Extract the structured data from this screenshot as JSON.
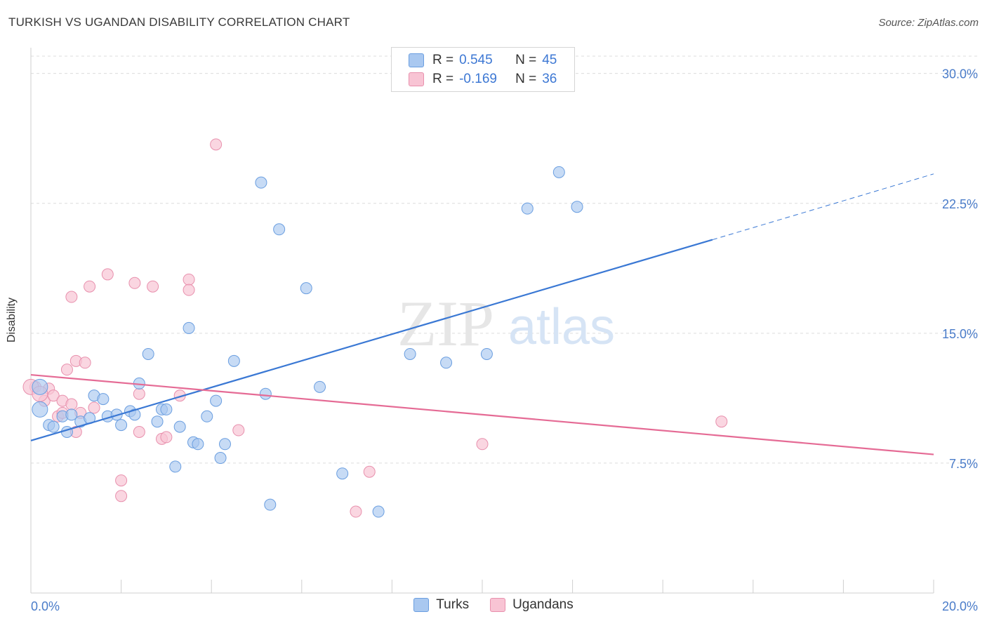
{
  "header": {
    "title": "TURKISH VS UGANDAN DISABILITY CORRELATION CHART",
    "source": "Source: ZipAtlas.com"
  },
  "watermark": {
    "zip": "ZIP",
    "atlas": "atlas"
  },
  "legend": {
    "rows": [
      {
        "r_label": "R =",
        "r_value": "0.545",
        "n_label": "N =",
        "n_value": "45",
        "color": "#a9c8f0",
        "border": "#6a9ee0"
      },
      {
        "r_label": "R =",
        "r_value": "-0.169",
        "n_label": "N =",
        "n_value": "36",
        "color": "#f8c4d4",
        "border": "#e890ad"
      }
    ]
  },
  "bottom_legend": [
    {
      "label": "Turks",
      "color": "#a9c8f0",
      "border": "#6a9ee0"
    },
    {
      "label": "Ugandans",
      "color": "#f8c4d4",
      "border": "#e890ad"
    }
  ],
  "chart_data": {
    "type": "scatter",
    "title": "TURKISH VS UGANDAN DISABILITY CORRELATION CHART",
    "xlabel": "",
    "ylabel": "Disability",
    "xlim": [
      0,
      20
    ],
    "ylim": [
      0,
      31
    ],
    "y_ticks": [
      {
        "value": 7.5,
        "label": "7.5%"
      },
      {
        "value": 15,
        "label": "15.0%"
      },
      {
        "value": 22.5,
        "label": "22.5%"
      },
      {
        "value": 30,
        "label": "30.0%"
      }
    ],
    "x_tick_labels": [
      {
        "value": 0,
        "label": "0.0%"
      },
      {
        "value": 20,
        "label": "20.0%"
      }
    ],
    "x_minor_ticks": [
      0,
      2,
      4,
      6,
      8,
      10,
      12,
      14,
      16,
      18,
      20
    ],
    "grid": "horizontal dashed",
    "colors": {
      "turks": "#3a78d4",
      "ugandans": "#e56b95",
      "turks_fill": "#a9c8f0",
      "ugandans_fill": "#f8c4d4"
    },
    "series": [
      {
        "name": "Turks",
        "points": [
          [
            0.2,
            11.9
          ],
          [
            0.2,
            10.6
          ],
          [
            0.4,
            9.7
          ],
          [
            0.5,
            9.6
          ],
          [
            0.7,
            10.2
          ],
          [
            0.8,
            9.3
          ],
          [
            0.9,
            10.3
          ],
          [
            1.1,
            9.9
          ],
          [
            1.3,
            10.1
          ],
          [
            1.4,
            11.4
          ],
          [
            1.6,
            11.2
          ],
          [
            1.7,
            10.2
          ],
          [
            1.9,
            10.3
          ],
          [
            2.0,
            9.7
          ],
          [
            2.2,
            10.5
          ],
          [
            2.3,
            10.3
          ],
          [
            2.4,
            12.1
          ],
          [
            2.6,
            13.8
          ],
          [
            2.8,
            9.9
          ],
          [
            2.9,
            10.6
          ],
          [
            3.0,
            10.6
          ],
          [
            3.2,
            7.3
          ],
          [
            3.3,
            9.6
          ],
          [
            3.5,
            15.3
          ],
          [
            3.6,
            8.7
          ],
          [
            3.7,
            8.6
          ],
          [
            3.9,
            10.2
          ],
          [
            4.1,
            11.1
          ],
          [
            4.2,
            7.8
          ],
          [
            4.3,
            8.6
          ],
          [
            4.5,
            13.4
          ],
          [
            5.1,
            23.7
          ],
          [
            5.2,
            11.5
          ],
          [
            5.3,
            5.1
          ],
          [
            5.5,
            21.0
          ],
          [
            6.1,
            17.6
          ],
          [
            6.4,
            11.9
          ],
          [
            6.9,
            6.9
          ],
          [
            7.7,
            4.7
          ],
          [
            8.4,
            13.8
          ],
          [
            9.2,
            13.3
          ],
          [
            10.1,
            13.8
          ],
          [
            11.0,
            22.2
          ],
          [
            11.7,
            24.3
          ],
          [
            12.1,
            22.3
          ]
        ],
        "trend": {
          "x0": 0,
          "y0": 8.8,
          "x1": 15.1,
          "y1": 20.4,
          "x_dash_end": 20.0,
          "y_dash_end": 24.2
        }
      },
      {
        "name": "Ugandans",
        "points": [
          [
            0.1,
            11.9
          ],
          [
            0.3,
            11.1
          ],
          [
            0.4,
            11.8
          ],
          [
            0.5,
            11.4
          ],
          [
            0.6,
            10.2
          ],
          [
            0.7,
            10.4
          ],
          [
            0.7,
            11.1
          ],
          [
            0.8,
            12.9
          ],
          [
            0.9,
            10.9
          ],
          [
            0.9,
            17.1
          ],
          [
            1.0,
            9.3
          ],
          [
            1.0,
            13.4
          ],
          [
            1.1,
            10.4
          ],
          [
            1.2,
            13.3
          ],
          [
            1.3,
            17.7
          ],
          [
            1.4,
            10.7
          ],
          [
            1.7,
            18.4
          ],
          [
            2.0,
            5.6
          ],
          [
            2.0,
            6.5
          ],
          [
            2.3,
            17.9
          ],
          [
            2.4,
            9.3
          ],
          [
            2.4,
            11.5
          ],
          [
            2.7,
            17.7
          ],
          [
            2.9,
            8.9
          ],
          [
            3.0,
            9.0
          ],
          [
            3.3,
            11.4
          ],
          [
            3.5,
            18.1
          ],
          [
            3.5,
            17.5
          ],
          [
            4.1,
            25.9
          ],
          [
            4.6,
            9.4
          ],
          [
            7.2,
            4.7
          ],
          [
            7.5,
            7.0
          ],
          [
            10.0,
            8.6
          ],
          [
            15.3,
            9.9
          ],
          [
            0.0,
            11.9
          ],
          [
            0.2,
            11.5
          ]
        ],
        "trend": {
          "x0": 0,
          "y0": 12.6,
          "x1": 20.0,
          "y1": 8.0
        }
      }
    ]
  }
}
